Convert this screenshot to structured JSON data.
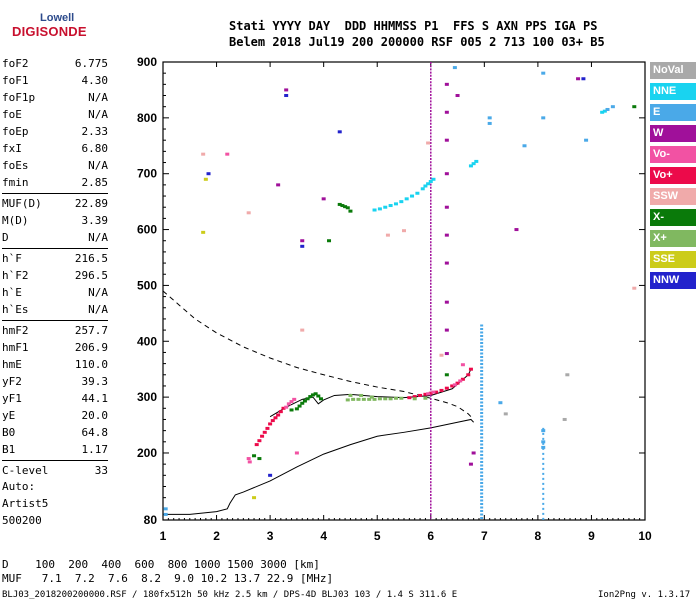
{
  "logo": {
    "line1": "Lowell",
    "line2": "DIGISONDE"
  },
  "header": {
    "line1": "Stati YYYY DAY  DDD HHMMSS P1  FFS S AXN PPS IGA PS",
    "line2": "Belem 2018 Jul19 200 200000 RSF 005 2 713 100 03+ B5"
  },
  "params": [
    {
      "name": "foF2",
      "value": "6.775"
    },
    {
      "name": "foF1",
      "value": "4.30"
    },
    {
      "name": "foF1p",
      "value": "N/A"
    },
    {
      "name": "foE",
      "value": "N/A"
    },
    {
      "name": "foEp",
      "value": "2.33"
    },
    {
      "name": "fxI",
      "value": "6.80"
    },
    {
      "name": "foEs",
      "value": "N/A"
    },
    {
      "name": "fmin",
      "value": "2.85"
    },
    {
      "name": "MUF(D)",
      "value": "22.89"
    },
    {
      "name": "M(D)",
      "value": "3.39"
    },
    {
      "name": "D",
      "value": "N/A"
    },
    {
      "name": "h`F",
      "value": "216.5"
    },
    {
      "name": "h`F2",
      "value": "296.5"
    },
    {
      "name": "h`E",
      "value": "N/A"
    },
    {
      "name": "h`Es",
      "value": "N/A"
    },
    {
      "name": "hmF2",
      "value": "257.7"
    },
    {
      "name": "hmF1",
      "value": "206.9"
    },
    {
      "name": "hmE",
      "value": "110.0"
    },
    {
      "name": "yF2",
      "value": "39.3"
    },
    {
      "name": "yF1",
      "value": "44.1"
    },
    {
      "name": "yE",
      "value": "20.0"
    },
    {
      "name": "B0",
      "value": "64.8"
    },
    {
      "name": "B1",
      "value": "1.17"
    },
    {
      "name": "C-level",
      "value": "33"
    }
  ],
  "autoscaling": {
    "line1": "Auto:",
    "line2": "Artist5",
    "line3": "500200"
  },
  "legend": [
    {
      "label": "NoVal",
      "color": "#a9a9a9"
    },
    {
      "label": "NNE",
      "color": "#19d3f0"
    },
    {
      "label": "E",
      "color": "#4aa9e8"
    },
    {
      "label": "W",
      "color": "#a0109a"
    },
    {
      "label": "Vo-",
      "color": "#f252a3"
    },
    {
      "label": "Vo+",
      "color": "#ec0a4a"
    },
    {
      "label": "SSW",
      "color": "#f0aaaa"
    },
    {
      "label": "X-",
      "color": "#0a7a0a"
    },
    {
      "label": "X+",
      "color": "#80b860"
    },
    {
      "label": "SSE",
      "color": "#cccc1a"
    },
    {
      "label": "NNW",
      "color": "#2222cc"
    }
  ],
  "footer": {
    "line1": "D    100  200  400  600  800 1000 1500 3000 [km]",
    "line2": "MUF   7.1  7.2  7.6  8.2  9.0 10.2 13.7 22.9 [MHz]",
    "line3": "BLJ03_2018200200000.RSF / 180fx512h 50 kHz 2.5 km / DPS-4D BLJ03 103 / 1.4 S 311.6 E",
    "version": "Ion2Png v. 1.3.17"
  },
  "chart_data": {
    "type": "scatter",
    "xlabel": "",
    "ylabel": "",
    "xlim": [
      1,
      10
    ],
    "ylim": [
      80,
      900
    ],
    "xticks": [
      "1",
      "2",
      "3",
      "4",
      "5",
      "6",
      "7",
      "8",
      "9",
      "10"
    ],
    "yticks": [
      "80",
      "200",
      "300",
      "400",
      "500",
      "600",
      "700",
      "800",
      "900"
    ],
    "series": [
      {
        "name": "Vo+",
        "color": "#ec0a4a",
        "points": [
          [
            2.75,
            215
          ],
          [
            2.8,
            222
          ],
          [
            2.85,
            230
          ],
          [
            2.9,
            237
          ],
          [
            2.95,
            244
          ],
          [
            3.0,
            252
          ],
          [
            3.05,
            258
          ],
          [
            3.1,
            263
          ],
          [
            3.15,
            268
          ],
          [
            3.2,
            274
          ],
          [
            3.25,
            280
          ],
          [
            5.6,
            299
          ],
          [
            5.7,
            301
          ],
          [
            5.8,
            303
          ],
          [
            5.9,
            305
          ],
          [
            6.0,
            307
          ],
          [
            6.1,
            309
          ],
          [
            6.2,
            312
          ],
          [
            6.3,
            316
          ],
          [
            6.4,
            320
          ],
          [
            6.5,
            325
          ],
          [
            6.6,
            332
          ],
          [
            6.7,
            340
          ],
          [
            6.75,
            350
          ]
        ]
      },
      {
        "name": "Vo-",
        "color": "#f252a3",
        "points": [
          [
            2.6,
            190
          ],
          [
            2.62,
            184
          ],
          [
            3.3,
            282
          ],
          [
            3.35,
            288
          ],
          [
            3.4,
            292
          ],
          [
            3.45,
            296
          ],
          [
            5.95,
            306
          ],
          [
            6.05,
            309
          ],
          [
            6.45,
            322
          ],
          [
            6.55,
            329
          ],
          [
            2.2,
            735
          ],
          [
            3.5,
            200
          ],
          [
            6.6,
            358
          ]
        ]
      },
      {
        "name": "X-",
        "color": "#0a7a0a",
        "points": [
          [
            3.55,
            284
          ],
          [
            3.6,
            289
          ],
          [
            3.65,
            293
          ],
          [
            3.7,
            297
          ],
          [
            3.75,
            301
          ],
          [
            3.8,
            304
          ],
          [
            3.85,
            306
          ],
          [
            3.9,
            302
          ],
          [
            3.95,
            297
          ],
          [
            3.4,
            277
          ],
          [
            3.5,
            279
          ],
          [
            4.3,
            645
          ],
          [
            4.35,
            643
          ],
          [
            4.4,
            641
          ],
          [
            4.45,
            639
          ],
          [
            4.5,
            633
          ],
          [
            4.1,
            580
          ],
          [
            6.3,
            340
          ],
          [
            9.8,
            820
          ],
          [
            2.7,
            195
          ],
          [
            2.8,
            190
          ]
        ]
      },
      {
        "name": "X+",
        "color": "#80b860",
        "points": [
          [
            4.45,
            295
          ],
          [
            4.55,
            296
          ],
          [
            4.65,
            296
          ],
          [
            4.75,
            296
          ],
          [
            4.85,
            296
          ],
          [
            4.95,
            296
          ],
          [
            5.05,
            297
          ],
          [
            5.15,
            297
          ],
          [
            5.25,
            297
          ],
          [
            5.35,
            298
          ],
          [
            5.45,
            298
          ],
          [
            4.5,
            303
          ],
          [
            4.7,
            303
          ],
          [
            4.9,
            300
          ],
          [
            5.7,
            297
          ],
          [
            5.9,
            298
          ]
        ]
      },
      {
        "name": "NNE",
        "color": "#19d3f0",
        "points": [
          [
            4.95,
            635
          ],
          [
            5.05,
            637
          ],
          [
            5.15,
            640
          ],
          [
            5.25,
            643
          ],
          [
            5.35,
            646
          ],
          [
            5.45,
            650
          ],
          [
            5.55,
            655
          ],
          [
            5.65,
            660
          ],
          [
            5.75,
            665
          ],
          [
            5.85,
            673
          ],
          [
            5.9,
            678
          ],
          [
            5.95,
            682
          ],
          [
            6.0,
            686
          ],
          [
            6.05,
            690
          ],
          [
            6.75,
            714
          ],
          [
            6.8,
            718
          ],
          [
            6.85,
            722
          ],
          [
            9.2,
            810
          ],
          [
            9.25,
            812
          ]
        ]
      },
      {
        "name": "E",
        "color": "#4aa9e8",
        "points": [
          [
            7.1,
            790
          ],
          [
            7.1,
            800
          ],
          [
            8.1,
            210
          ],
          [
            8.1,
            220
          ],
          [
            8.1,
            240
          ],
          [
            8.1,
            800
          ],
          [
            8.1,
            880
          ],
          [
            7.3,
            290
          ],
          [
            1.05,
            90
          ],
          [
            1.05,
            100
          ],
          [
            7.75,
            750
          ],
          [
            6.45,
            890
          ],
          [
            9.4,
            820
          ],
          [
            9.3,
            815
          ],
          [
            8.9,
            760
          ]
        ]
      },
      {
        "name": "W",
        "color": "#a0109a",
        "points": [
          [
            6.3,
            860
          ],
          [
            6.3,
            810
          ],
          [
            6.3,
            760
          ],
          [
            6.3,
            700
          ],
          [
            6.3,
            640
          ],
          [
            6.3,
            590
          ],
          [
            6.3,
            540
          ],
          [
            6.3,
            470
          ],
          [
            6.3,
            420
          ],
          [
            6.3,
            378
          ],
          [
            3.3,
            850
          ],
          [
            3.15,
            680
          ],
          [
            3.6,
            580
          ],
          [
            4.0,
            655
          ],
          [
            6.8,
            200
          ],
          [
            6.75,
            180
          ],
          [
            6.5,
            840
          ],
          [
            7.6,
            600
          ],
          [
            8.75,
            870
          ]
        ]
      },
      {
        "name": "SSW",
        "color": "#f0aaaa",
        "points": [
          [
            1.75,
            735
          ],
          [
            2.6,
            630
          ],
          [
            5.2,
            590
          ],
          [
            5.5,
            598
          ],
          [
            6.2,
            375
          ],
          [
            3.6,
            420
          ],
          [
            9.8,
            495
          ],
          [
            5.95,
            755
          ]
        ]
      },
      {
        "name": "SSE",
        "color": "#cccc1a",
        "points": [
          [
            1.8,
            690
          ],
          [
            1.75,
            595
          ],
          [
            2.7,
            120
          ]
        ]
      },
      {
        "name": "NNW",
        "color": "#2222cc",
        "points": [
          [
            1.85,
            700
          ],
          [
            3.3,
            840
          ],
          [
            3.6,
            570
          ],
          [
            4.3,
            775
          ],
          [
            8.85,
            870
          ],
          [
            3.0,
            160
          ]
        ]
      },
      {
        "name": "NoVal",
        "color": "#a9a9a9",
        "points": [
          [
            7.4,
            270
          ],
          [
            8.5,
            260
          ],
          [
            8.55,
            340
          ]
        ]
      }
    ]
  }
}
